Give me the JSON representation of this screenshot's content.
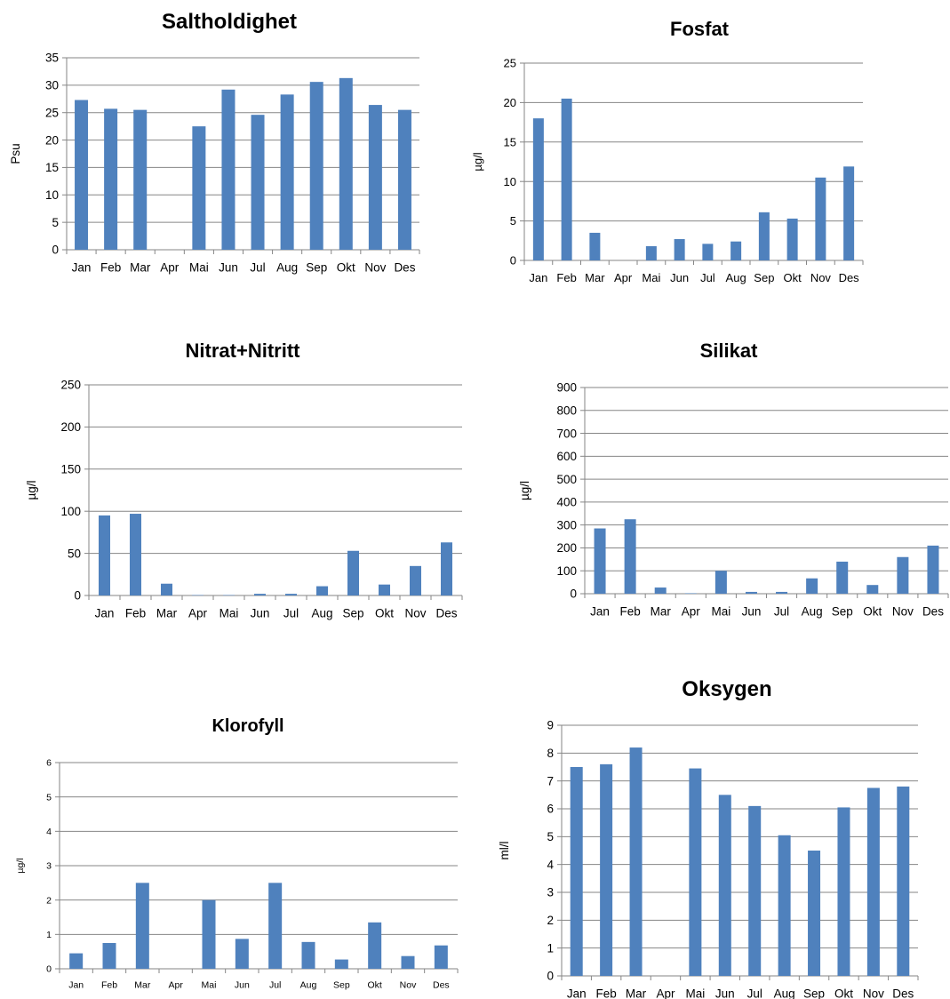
{
  "chart_data": [
    {
      "type": "bar",
      "title": "Saltholdighet",
      "xlabel": "",
      "ylabel": "Psu",
      "ylim": [
        0,
        35
      ],
      "yticks": [
        0,
        5,
        10,
        15,
        20,
        25,
        30,
        35
      ],
      "grid": true,
      "categories": [
        "Jan",
        "Feb",
        "Mar",
        "Apr",
        "Mai",
        "Jun",
        "Jul",
        "Aug",
        "Sep",
        "Okt",
        "Nov",
        "Des"
      ],
      "values": [
        27.3,
        25.7,
        25.5,
        null,
        22.5,
        29.2,
        24.6,
        28.3,
        30.6,
        31.3,
        26.4,
        25.5
      ],
      "color": "#4F81BD"
    },
    {
      "type": "bar",
      "title": "Fosfat",
      "xlabel": "",
      "ylabel": "µg/l",
      "ylim": [
        0,
        25
      ],
      "yticks": [
        0,
        5,
        10,
        15,
        20,
        25
      ],
      "grid": true,
      "categories": [
        "Jan",
        "Feb",
        "Mar",
        "Apr",
        "Mai",
        "Jun",
        "Jul",
        "Aug",
        "Sep",
        "Okt",
        "Nov",
        "Des"
      ],
      "values": [
        18.0,
        20.5,
        3.5,
        null,
        1.8,
        2.7,
        2.1,
        2.4,
        6.1,
        5.3,
        10.5,
        11.9
      ],
      "color": "#4F81BD"
    },
    {
      "type": "bar",
      "title": "Nitrat+Nitritt",
      "xlabel": "",
      "ylabel": "µg/l",
      "ylim": [
        0,
        250
      ],
      "yticks": [
        0,
        50,
        100,
        150,
        200,
        250
      ],
      "grid": true,
      "categories": [
        "Jan",
        "Feb",
        "Mar",
        "Apr",
        "Mai",
        "Jun",
        "Jul",
        "Aug",
        "Sep",
        "Okt",
        "Nov",
        "Des"
      ],
      "values": [
        95,
        97,
        14,
        0.5,
        0.5,
        2,
        2,
        11,
        53,
        13,
        35,
        63
      ],
      "color": "#4F81BD"
    },
    {
      "type": "bar",
      "title": "Silikat",
      "xlabel": "",
      "ylabel": "µg/l",
      "ylim": [
        0,
        900
      ],
      "yticks": [
        0,
        100,
        200,
        300,
        400,
        500,
        600,
        700,
        800,
        900
      ],
      "grid": true,
      "categories": [
        "Jan",
        "Feb",
        "Mar",
        "Apr",
        "Mai",
        "Jun",
        "Jul",
        "Aug",
        "Sep",
        "Okt",
        "Nov",
        "Des"
      ],
      "values": [
        285,
        325,
        27,
        2,
        100,
        8,
        8,
        67,
        140,
        38,
        160,
        210
      ],
      "color": "#4F81BD"
    },
    {
      "type": "bar",
      "title": "Klorofyll",
      "xlabel": "",
      "ylabel": "µg/l",
      "ylim": [
        0,
        6
      ],
      "yticks": [
        0,
        1,
        2,
        3,
        4,
        5,
        6
      ],
      "grid": true,
      "categories": [
        "Jan",
        "Feb",
        "Mar",
        "Apr",
        "Mai",
        "Jun",
        "Jul",
        "Aug",
        "Sep",
        "Okt",
        "Nov",
        "Des"
      ],
      "values": [
        0.45,
        0.75,
        2.5,
        null,
        2.0,
        0.87,
        2.5,
        0.78,
        0.27,
        1.35,
        0.37,
        0.68
      ],
      "color": "#4F81BD"
    },
    {
      "type": "bar",
      "title": "Oksygen",
      "xlabel": "",
      "ylabel": "ml/l",
      "ylim": [
        0,
        9
      ],
      "yticks": [
        0,
        1,
        2,
        3,
        4,
        5,
        6,
        7,
        8,
        9
      ],
      "grid": true,
      "categories": [
        "Jan",
        "Feb",
        "Mar",
        "Apr",
        "Mai",
        "Jun",
        "Jul",
        "Aug",
        "Sep",
        "Okt",
        "Nov",
        "Des"
      ],
      "values": [
        7.5,
        7.6,
        8.2,
        null,
        7.45,
        6.5,
        6.1,
        5.05,
        4.5,
        6.05,
        6.75,
        6.8
      ],
      "color": "#4F81BD"
    }
  ]
}
